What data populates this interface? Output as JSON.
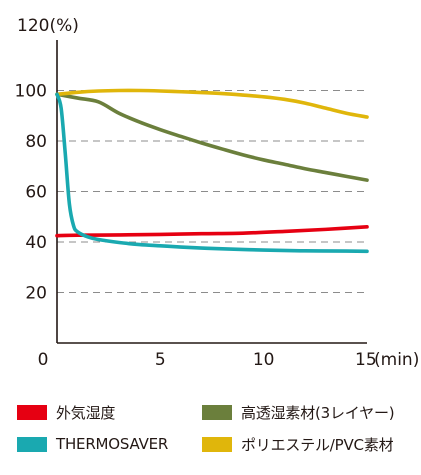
{
  "chart_data": {
    "type": "line",
    "y_title": "120(%)",
    "x_unit": "(min)",
    "x_ticks": [
      "0",
      "5",
      "10",
      "15"
    ],
    "y_ticks": [
      "20",
      "40",
      "60",
      "80",
      "100"
    ],
    "xlim": [
      0,
      15
    ],
    "ylim": [
      0,
      120
    ],
    "grid": "dashed horizontal lines at 20, 40, 60, 80, 100",
    "legend_position": "bottom",
    "series": [
      {
        "name": "外気湿度",
        "color": "#e60012",
        "x": [
          0,
          1,
          3,
          5,
          7,
          9,
          11,
          13,
          15
        ],
        "y": [
          42.5,
          42.7,
          42.8,
          43.0,
          43.3,
          43.5,
          44.2,
          45.0,
          46.0
        ]
      },
      {
        "name": "高透湿素材(3レイヤー)",
        "color": "#6b7f3c",
        "x": [
          0,
          1,
          2,
          3,
          4,
          5,
          6,
          7,
          8,
          9,
          10,
          11,
          12,
          13,
          14,
          15
        ],
        "y": [
          98.5,
          97.0,
          95.5,
          91.0,
          87.5,
          84.5,
          81.8,
          79.2,
          76.8,
          74.5,
          72.5,
          70.8,
          69.0,
          67.5,
          66.0,
          64.5
        ]
      },
      {
        "name": "THERMOSAVER",
        "color": "#1aa9b0",
        "x": [
          0,
          0.2,
          0.4,
          0.6,
          0.8,
          1,
          1.5,
          2,
          3,
          4,
          5,
          6,
          7,
          8,
          10,
          12,
          14,
          15
        ],
        "y": [
          98.5,
          93,
          75,
          55,
          46.5,
          44,
          42,
          41,
          39.8,
          39,
          38.5,
          38,
          37.6,
          37.3,
          36.8,
          36.5,
          36.4,
          36.3
        ]
      },
      {
        "name": "ポリエステル/PVC素材",
        "color": "#e0b60b",
        "x": [
          0,
          1,
          2,
          3,
          4,
          5,
          6,
          7,
          8,
          9,
          10,
          11,
          12,
          13,
          14,
          15
        ],
        "y": [
          98.5,
          99.3,
          99.8,
          100.0,
          100.0,
          99.8,
          99.5,
          99.2,
          98.8,
          98.2,
          97.5,
          96.5,
          95.0,
          93.0,
          91.0,
          89.5
        ]
      }
    ]
  },
  "legend_items": [
    {
      "label": "外気湿度",
      "color": "#e60012"
    },
    {
      "label": "高透湿素材(3レイヤー)",
      "color": "#6b7f3c"
    },
    {
      "label": "THERMOSAVER",
      "color": "#1aa9b0"
    },
    {
      "label": "ポリエステル/PVC素材",
      "color": "#e0b60b"
    }
  ]
}
